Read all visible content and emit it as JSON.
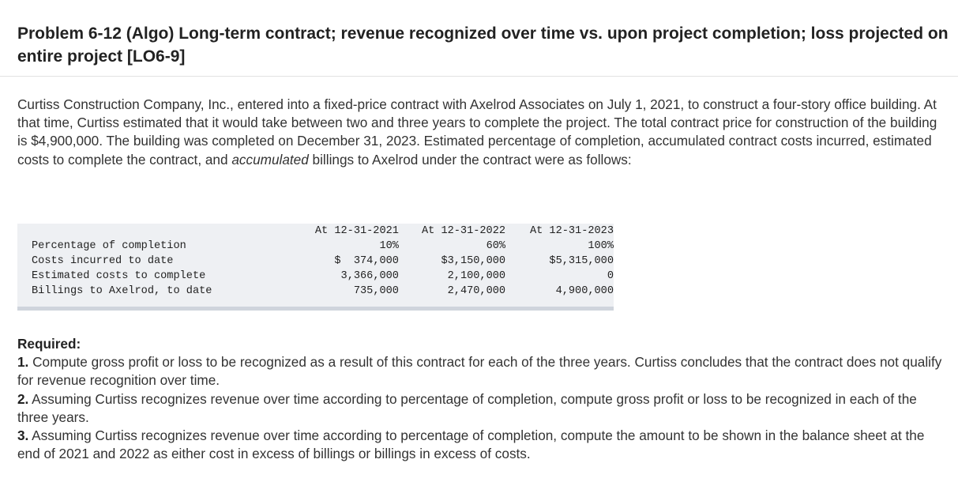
{
  "title": "Problem 6-12 (Algo) Long-term contract; revenue recognized over time vs. upon project completion; loss projected on entire project [LO6-9]",
  "intro": {
    "before_italic": "Curtiss Construction Company, Inc., entered into a fixed-price contract with Axelrod Associates on July 1, 2021, to construct a four-story office building. At that time, Curtiss estimated that it would take between two and three years to complete the project. The total contract price for construction of the building is $4,900,000. The building was completed on December 31, 2023. Estimated percentage of completion, accumulated contract costs incurred, estimated costs to complete the contract, and ",
    "italic": "accumulated",
    "after_italic": " billings to Axelrod under the contract were as follows:"
  },
  "table": {
    "headers": [
      "",
      "At 12-31-2021",
      "At 12-31-2022",
      "At 12-31-2023"
    ],
    "rows": [
      {
        "label": "Percentage of completion",
        "values": [
          "10%",
          "60%",
          "100%"
        ]
      },
      {
        "label": "Costs incurred to date",
        "values": [
          "$  374,000",
          "$3,150,000",
          "$5,315,000"
        ]
      },
      {
        "label": "Estimated costs to complete",
        "values": [
          "3,366,000",
          "2,100,000",
          "0"
        ]
      },
      {
        "label": "Billings to Axelrod, to date",
        "values": [
          "735,000",
          "2,470,000",
          "4,900,000"
        ]
      }
    ]
  },
  "required": {
    "heading": "Required:",
    "items": [
      {
        "number": "1.",
        "text": " Compute gross profit or loss to be recognized as a result of this contract for each of the three years. Curtiss concludes that the contract does not qualify for revenue recognition over time."
      },
      {
        "number": "2.",
        "text": " Assuming Curtiss recognizes revenue over time according to percentage of completion, compute gross profit or loss to be recognized in each of the three years."
      },
      {
        "number": "3.",
        "text": " Assuming Curtiss recognizes revenue over time according to percentage of completion, compute the amount to be shown in the balance sheet at the end of 2021 and 2022 as either cost in excess of billings or billings in excess of costs."
      }
    ]
  }
}
